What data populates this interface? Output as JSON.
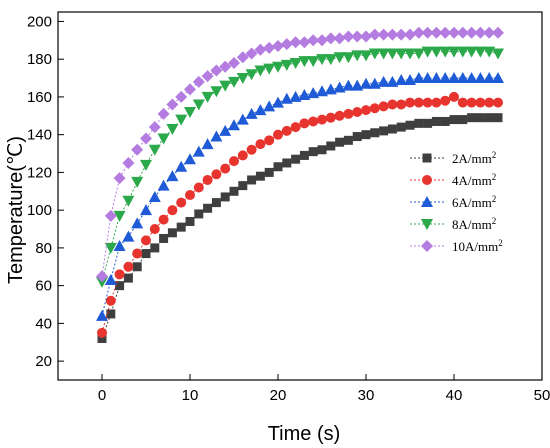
{
  "chart_data": {
    "type": "line",
    "xlabel": "Time (s)",
    "ylabel": "Temperature(℃)",
    "xlim": [
      -5,
      50
    ],
    "ylim": [
      10,
      205
    ],
    "xticks": [
      0,
      10,
      20,
      30,
      40,
      50
    ],
    "yticks": [
      20,
      40,
      60,
      80,
      100,
      120,
      140,
      160,
      180,
      200
    ],
    "legend_position": "center-right",
    "grid": false,
    "x": [
      0,
      1,
      2,
      3,
      4,
      5,
      6,
      7,
      8,
      9,
      10,
      11,
      12,
      13,
      14,
      15,
      16,
      17,
      18,
      19,
      20,
      21,
      22,
      23,
      24,
      25,
      26,
      27,
      28,
      29,
      30,
      31,
      32,
      33,
      34,
      35,
      36,
      37,
      38,
      39,
      40,
      41,
      42,
      43,
      44,
      45
    ],
    "series": [
      {
        "name": "2A/mm²",
        "label_base": "2A/mm",
        "label_sup": "2",
        "marker": "square",
        "color": "#3f3f3f",
        "values": [
          32,
          45,
          60,
          64,
          70,
          77,
          80,
          85,
          88,
          91,
          94,
          98,
          101,
          104,
          107,
          110,
          113,
          116,
          118,
          120,
          123,
          125,
          127,
          129,
          131,
          132,
          134,
          136,
          137,
          139,
          140,
          141,
          142,
          143,
          144,
          145,
          146,
          146,
          147,
          147,
          148,
          148,
          149,
          149,
          149,
          149
        ]
      },
      {
        "name": "4A/mm²",
        "label_base": "4A/mm",
        "label_sup": "2",
        "marker": "circle",
        "color": "#e8342e",
        "values": [
          35,
          52,
          66,
          70,
          77,
          84,
          90,
          95,
          100,
          104,
          108,
          112,
          116,
          119,
          122,
          126,
          129,
          132,
          135,
          137,
          140,
          142,
          144,
          146,
          147,
          148,
          149,
          150,
          151,
          152,
          153,
          154,
          155,
          156,
          156,
          157,
          157,
          157,
          157,
          158,
          160,
          157,
          157,
          157,
          157,
          157
        ]
      },
      {
        "name": "6A/mm²",
        "label_base": "6A/mm",
        "label_sup": "2",
        "marker": "triangle-up",
        "color": "#1f5bd6",
        "values": [
          44,
          63,
          81,
          86,
          93,
          100,
          107,
          113,
          118,
          123,
          127,
          131,
          135,
          139,
          142,
          145,
          148,
          151,
          153,
          155,
          157,
          159,
          160,
          161,
          162,
          163,
          164,
          165,
          166,
          166,
          167,
          167,
          168,
          168,
          169,
          169,
          170,
          170,
          170,
          170,
          170,
          170,
          170,
          170,
          170,
          170
        ]
      },
      {
        "name": "8A/mm²",
        "label_base": "8A/mm",
        "label_sup": "2",
        "marker": "triangle-down",
        "color": "#2aa84a",
        "values": [
          62,
          80,
          97,
          105,
          115,
          124,
          132,
          138,
          143,
          148,
          152,
          156,
          160,
          163,
          166,
          168,
          170,
          172,
          174,
          175,
          176,
          177,
          178,
          179,
          179,
          180,
          180,
          181,
          181,
          182,
          182,
          183,
          183,
          183,
          183,
          183,
          183,
          184,
          184,
          184,
          184,
          184,
          184,
          184,
          184,
          183
        ]
      },
      {
        "name": "10A/mm²",
        "label_base": "10A/mm",
        "label_sup": "2",
        "marker": "diamond",
        "color": "#b47be0",
        "values": [
          65,
          97,
          117,
          125,
          132,
          138,
          144,
          151,
          156,
          160,
          164,
          168,
          171,
          174,
          176,
          178,
          181,
          183,
          185,
          186,
          187,
          188,
          189,
          189,
          190,
          190,
          191,
          191,
          192,
          192,
          192,
          193,
          193,
          193,
          193,
          193,
          194,
          194,
          194,
          194,
          194,
          194,
          194,
          194,
          194,
          194
        ]
      }
    ]
  }
}
